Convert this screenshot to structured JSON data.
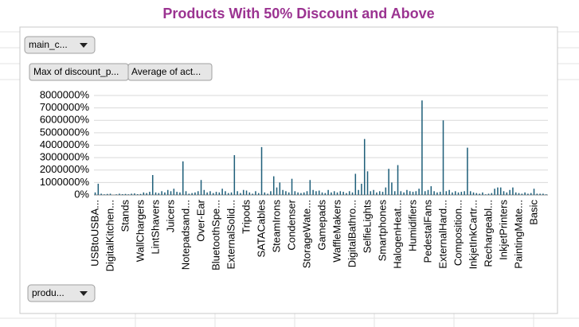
{
  "ui": {
    "buttons": [
      "main_c...",
      "Max of discount_p...",
      "Average of act...",
      "produ..."
    ]
  },
  "chart_data": {
    "type": "bar",
    "title": "Products With 50% Discount and Above",
    "color": "#1f5f7a",
    "grid": true,
    "ylim": [
      0,
      8000000
    ],
    "yticks": [
      {
        "value": 0,
        "label": "0%"
      },
      {
        "value": 1000000,
        "label": "1000000%"
      },
      {
        "value": 2000000,
        "label": "2000000%"
      },
      {
        "value": 3000000,
        "label": "3000000%"
      },
      {
        "value": 4000000,
        "label": "4000000%"
      },
      {
        "value": 5000000,
        "label": "5000000%"
      },
      {
        "value": 6000000,
        "label": "6000000%"
      },
      {
        "value": 7000000,
        "label": "7000000%"
      },
      {
        "value": 8000000,
        "label": "8000000%"
      }
    ],
    "categories": [
      "USBtoUSBA...",
      null,
      null,
      null,
      null,
      "DigitalKitchen...",
      null,
      null,
      null,
      null,
      "Stands",
      null,
      null,
      null,
      null,
      "WallChargers",
      null,
      null,
      null,
      null,
      "LintShavers",
      null,
      null,
      null,
      null,
      "Juicers",
      null,
      null,
      null,
      null,
      "Notepadsand...",
      null,
      null,
      null,
      null,
      "Over-Ear",
      null,
      null,
      null,
      null,
      "BluetoothSpe...",
      null,
      null,
      null,
      null,
      "ExternalSolid...",
      null,
      null,
      null,
      null,
      "Tripods",
      null,
      null,
      null,
      null,
      "SATACables",
      null,
      null,
      null,
      null,
      "SteamIrons",
      null,
      null,
      null,
      null,
      "Condenser",
      null,
      null,
      null,
      null,
      "StorageWate...",
      null,
      null,
      null,
      null,
      "Gamepads",
      null,
      null,
      null,
      null,
      "WaffleMakers",
      null,
      null,
      null,
      null,
      "DigitalBathro...",
      null,
      null,
      null,
      null,
      "SelfieLights",
      null,
      null,
      null,
      null,
      "Smartphones",
      null,
      null,
      null,
      null,
      "HalogenHeat...",
      null,
      null,
      null,
      null,
      "Humidifiers",
      null,
      null,
      null,
      null,
      "PedestalFans",
      null,
      null,
      null,
      null,
      "ExternalHard...",
      null,
      null,
      null,
      null,
      "Composition...",
      null,
      null,
      null,
      null,
      "InkjetInkCartr...",
      null,
      null,
      null,
      null,
      "Rechargeabl...",
      null,
      null,
      null,
      null,
      "InkjetPrinters",
      null,
      null,
      null,
      null,
      "PaintingMate...",
      null,
      null,
      null,
      null,
      "Basic",
      null,
      null,
      null,
      null
    ],
    "values": [
      200000,
      900000,
      100000,
      50000,
      80000,
      100000,
      0,
      50000,
      100000,
      60000,
      80000,
      50000,
      100000,
      120000,
      60000,
      80000,
      200000,
      150000,
      250000,
      1600000,
      200000,
      150000,
      300000,
      200000,
      400000,
      300000,
      500000,
      250000,
      200000,
      2700000,
      300000,
      100000,
      150000,
      200000,
      300000,
      1200000,
      400000,
      200000,
      300000,
      150000,
      250000,
      200000,
      500000,
      300000,
      150000,
      200000,
      3200000,
      300000,
      150000,
      400000,
      350000,
      200000,
      100000,
      300000,
      150000,
      3850000,
      200000,
      100000,
      300000,
      1500000,
      600000,
      1000000,
      400000,
      300000,
      200000,
      1300000,
      300000,
      200000,
      150000,
      200000,
      300000,
      1200000,
      400000,
      300000,
      350000,
      200000,
      150000,
      400000,
      200000,
      300000,
      200000,
      300000,
      250000,
      150000,
      300000,
      200000,
      1700000,
      400000,
      900000,
      4500000,
      1900000,
      300000,
      400000,
      200000,
      300000,
      250000,
      600000,
      2100000,
      1000000,
      300000,
      2400000,
      300000,
      200000,
      400000,
      300000,
      250000,
      300000,
      500000,
      7600000,
      300000,
      400000,
      700000,
      300000,
      200000,
      250000,
      6000000,
      300000,
      400000,
      200000,
      300000,
      200000,
      250000,
      300000,
      3800000,
      300000,
      200000,
      150000,
      100000,
      200000,
      50000,
      100000,
      150000,
      500000,
      600000,
      600000,
      300000,
      200000,
      400000,
      600000,
      200000,
      150000,
      100000,
      200000,
      100000,
      150000,
      500000,
      100000,
      100000,
      100000,
      50000
    ]
  }
}
